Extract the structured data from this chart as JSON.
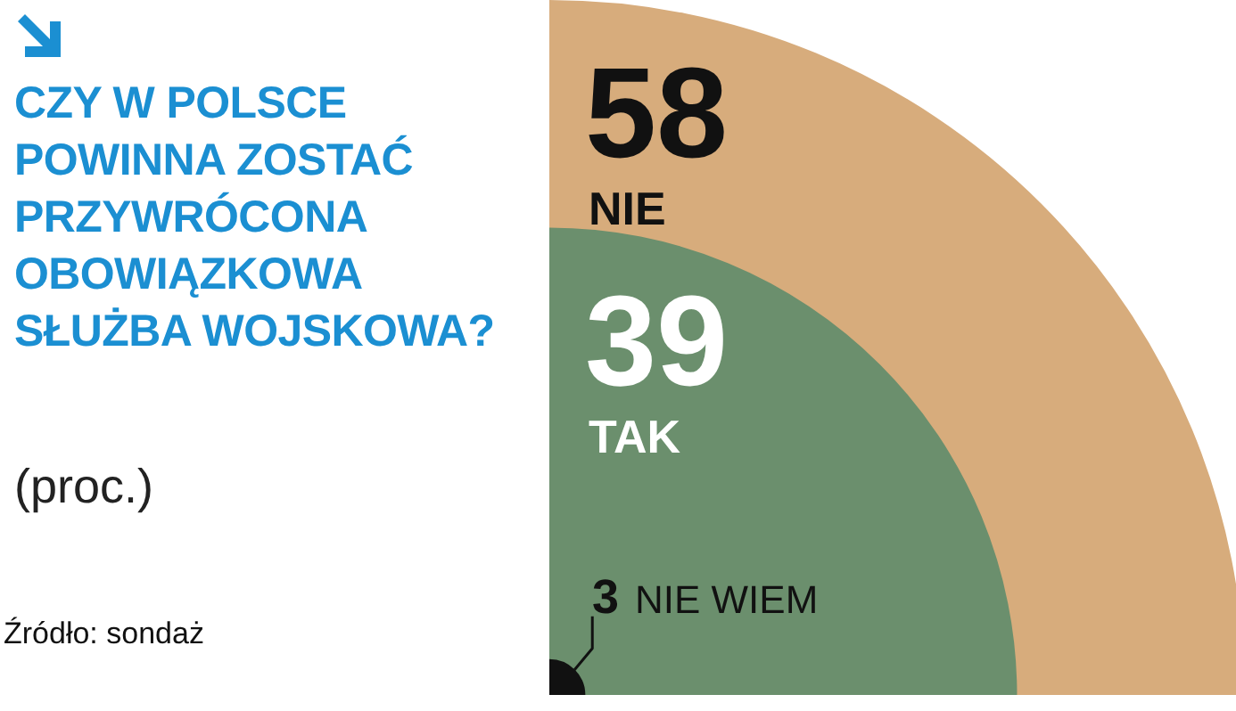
{
  "chart_data": {
    "type": "other",
    "title": "CZY W POLSCE POWINNA ZOSTAĆ PRZYWRÓCONA OBOWIĄZKOWA SŁUŻBA WOJSKOWA?",
    "subtitle": "(proc.)",
    "categories": [
      "NIE",
      "TAK",
      "NIE WIEM"
    ],
    "values": [
      58,
      39,
      3
    ],
    "colors": [
      "#d7ac7c",
      "#6b8f6d",
      "#111111"
    ],
    "data_labels": true,
    "legend": false,
    "annotations": [
      "Źródło: sondaż"
    ]
  }
}
